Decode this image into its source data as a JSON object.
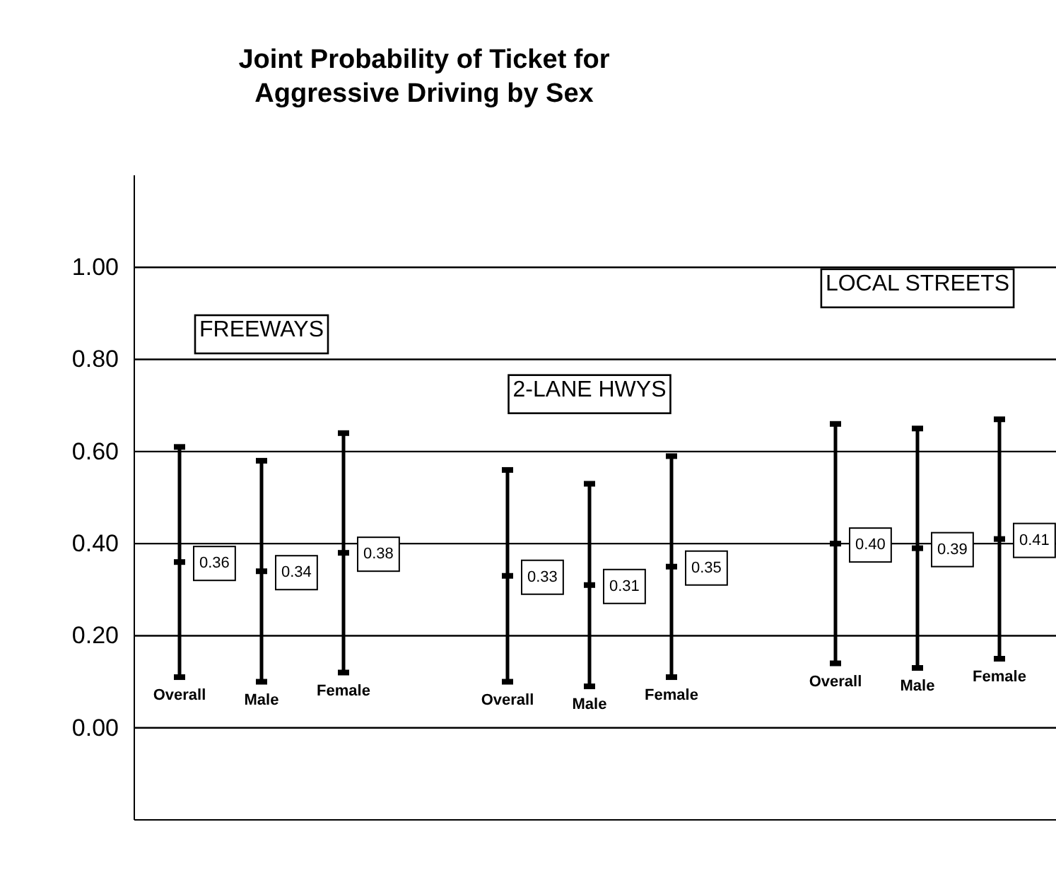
{
  "chart_data": {
    "type": "scatter",
    "title": "Joint Probability of Ticket for Aggressive Driving  by Sex",
    "categories": [
      "Overall",
      "Male",
      "Female",
      null,
      "Overall",
      "Male",
      "Female",
      null,
      "Overall",
      "Male",
      "Female"
    ],
    "values": [
      0.36,
      0.34,
      0.38,
      null,
      0.33,
      0.31,
      0.35,
      null,
      0.4,
      0.39,
      0.41
    ],
    "errors": [
      [
        0.11,
        0.61
      ],
      [
        0.1,
        0.58
      ],
      [
        0.12,
        0.64
      ],
      null,
      [
        0.1,
        0.56
      ],
      [
        0.09,
        0.53
      ],
      [
        0.11,
        0.59
      ],
      null,
      [
        0.14,
        0.66
      ],
      [
        0.13,
        0.65
      ],
      [
        0.15,
        0.67
      ]
    ],
    "value_labels": [
      "0.36",
      "0.34",
      "0.38",
      null,
      "0.33",
      "0.31",
      "0.35",
      null,
      "0.40",
      "0.39",
      "0.41"
    ],
    "annotations": [
      "FREEWAYS",
      "2-LANE HWYS",
      "LOCAL STREETS"
    ],
    "ylim": [
      -0.2,
      1.2
    ],
    "yticks": [
      {
        "value": 0,
        "label": "0.00"
      },
      {
        "value": 0.2,
        "label": "0.20"
      },
      {
        "value": 0.4,
        "label": "0.40"
      },
      {
        "value": 0.6,
        "label": "0.60"
      },
      {
        "value": 0.8,
        "label": "0.80"
      },
      {
        "value": 1,
        "label": "1.00"
      }
    ],
    "grid": "y"
  }
}
